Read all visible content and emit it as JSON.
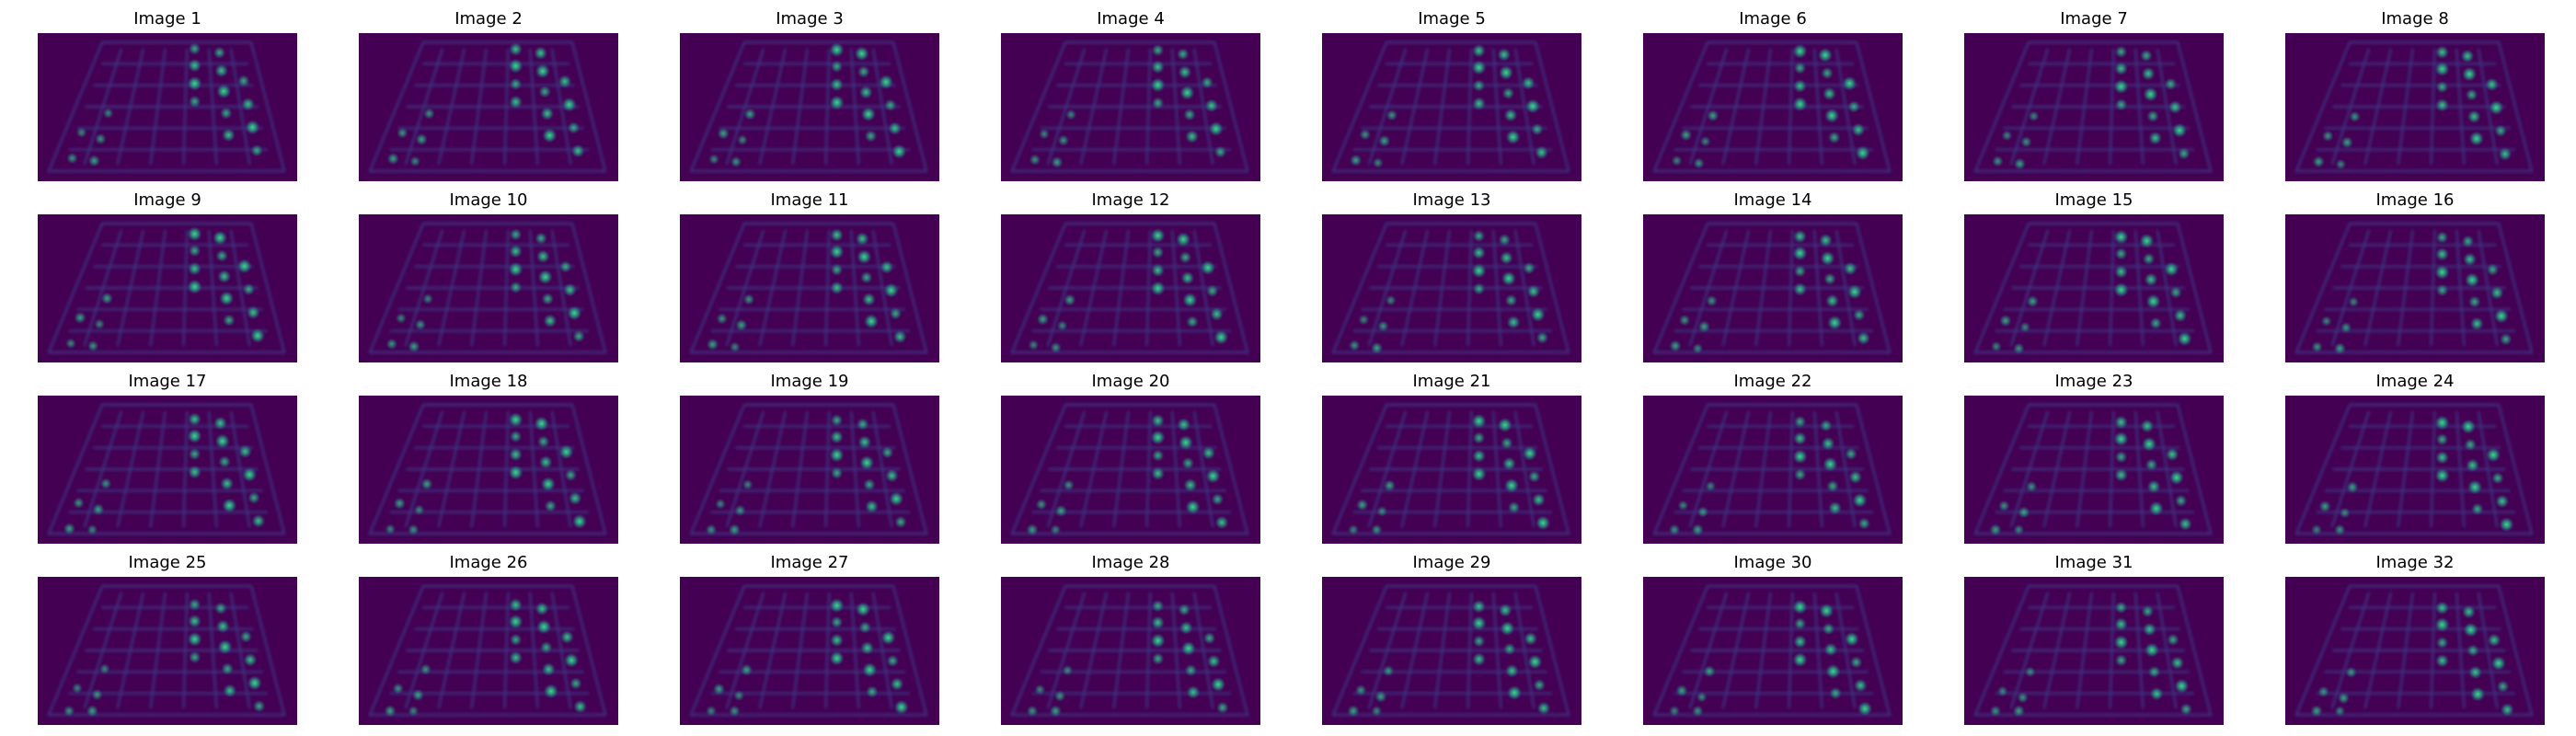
{
  "figure": {
    "titles": [
      "Image 1",
      "Image 2",
      "Image 3",
      "Image 4",
      "Image 5",
      "Image 6",
      "Image 7",
      "Image 8",
      "Image 9",
      "Image 10",
      "Image 11",
      "Image 12",
      "Image 13",
      "Image 14",
      "Image 15",
      "Image 16",
      "Image 17",
      "Image 18",
      "Image 19",
      "Image 20",
      "Image 21",
      "Image 22",
      "Image 23",
      "Image 24",
      "Image 25",
      "Image 26",
      "Image 27",
      "Image 28",
      "Image 29",
      "Image 30",
      "Image 31",
      "Image 32"
    ],
    "rows": 4,
    "cols": 8,
    "colormap": "viridis",
    "colors": {
      "background": "#440154",
      "grid_line": "#3e3a86",
      "blob_mid": "#2c728e",
      "blob_bright": "#22a884",
      "blob_peak": "#4fd08a"
    }
  }
}
